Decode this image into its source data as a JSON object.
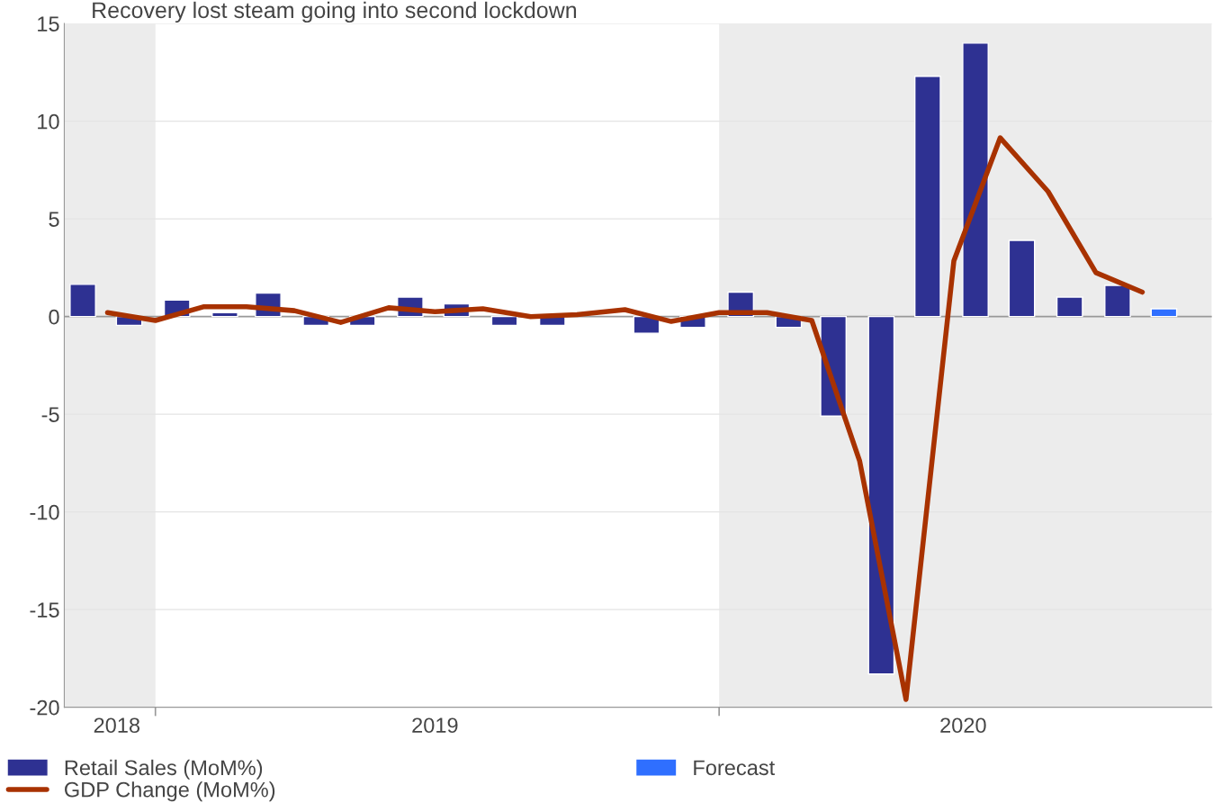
{
  "chart_data": {
    "type": "bar",
    "title": "Recovery lost steam going into second lockdown",
    "x": [
      "2018-11-15",
      "2018-12-15",
      "2019-01-15",
      "2019-02-15",
      "2019-03-15",
      "2019-04-15",
      "2019-05-15",
      "2019-06-15",
      "2019-07-15",
      "2019-08-15",
      "2019-09-15",
      "2019-10-15",
      "2019-11-15",
      "2019-12-15",
      "2020-01-15",
      "2020-02-15",
      "2020-03-15",
      "2020-04-15",
      "2020-05-15",
      "2020-06-15",
      "2020-07-15",
      "2020-08-15",
      "2020-09-15",
      "2020-10-15"
    ],
    "series": [
      {
        "name": "Retail Sales (MoM%)",
        "color": "#2e3192",
        "values": [
          1.65,
          -0.45,
          0.85,
          0.2,
          1.2,
          -0.45,
          -0.45,
          1.0,
          0.65,
          -0.45,
          -0.45,
          null,
          -0.85,
          -0.55,
          1.25,
          -0.55,
          -5.1,
          -18.3,
          12.3,
          14.0,
          3.9,
          1.0,
          1.6,
          null
        ]
      },
      {
        "name": "GDP Change (MoM%)",
        "type": "line",
        "color": "#a83200",
        "line_style": "solid",
        "marker": "none",
        "x": [
          "2018-12-01",
          "2019-01-01",
          "2019-02-01",
          "2019-03-01",
          "2019-04-01",
          "2019-05-01",
          "2019-06-01",
          "2019-07-01",
          "2019-08-01",
          "2019-09-01",
          "2019-10-01",
          "2019-11-01",
          "2019-12-01",
          "2020-01-01",
          "2020-02-01",
          "2020-03-01",
          "2020-04-01",
          "2020-05-01",
          "2020-06-01",
          "2020-07-01",
          "2020-08-01",
          "2020-09-01",
          "2020-10-01"
        ],
        "values": [
          0.2,
          -0.2,
          0.5,
          0.5,
          0.3,
          -0.3,
          0.45,
          0.25,
          0.4,
          0.0,
          0.1,
          0.35,
          -0.25,
          0.2,
          0.2,
          -0.2,
          -7.4,
          -19.6,
          2.85,
          9.15,
          6.4,
          2.25,
          1.25
        ]
      },
      {
        "name": "Forecast",
        "color": "#2f6fff",
        "values": [
          null,
          null,
          null,
          null,
          null,
          null,
          null,
          null,
          null,
          null,
          null,
          null,
          null,
          null,
          null,
          null,
          null,
          null,
          null,
          null,
          null,
          null,
          null,
          0.4
        ]
      }
    ],
    "xlim": [
      "2018-11-03",
      "2020-11-15"
    ],
    "xticks": [
      {
        "value": "2019-01-01",
        "label": null
      },
      {
        "value": "2020-01-01",
        "label": null
      },
      {
        "value": "2018-12-07",
        "label": "2018"
      },
      {
        "value": "2019-07-01",
        "label": "2019"
      },
      {
        "value": "2020-06-07",
        "label": "2020"
      }
    ],
    "ylim": [
      -20,
      15
    ],
    "yticks": [
      15,
      10,
      5,
      0,
      -5,
      -10,
      -15,
      -20
    ],
    "bands": [
      {
        "axis": "x",
        "from": "2018-11-03",
        "to": "2019-01-01",
        "color": "#ececec"
      },
      {
        "axis": "x",
        "from": "2020-01-01",
        "to": "2020-11-15",
        "color": "#ececec"
      }
    ],
    "ref_lines": [
      {
        "axis": "y",
        "value": 0,
        "color": "#999999",
        "line_style": "solid"
      }
    ],
    "grid": "y",
    "legend": "bottom"
  }
}
